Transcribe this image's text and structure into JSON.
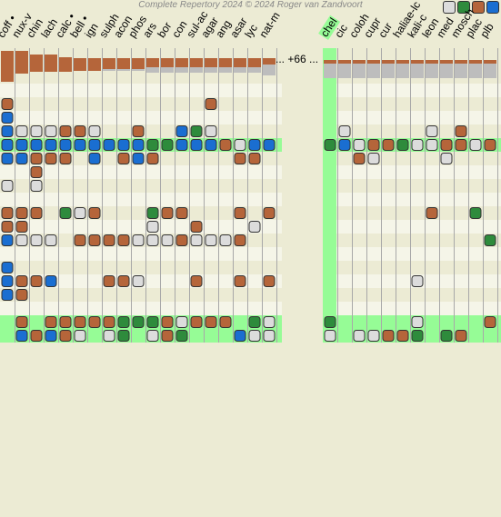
{
  "app": {
    "copyright": "Complete Repertory 2024 © 2024 Roger van Zandvoort",
    "more_remedies_label": "... +66 ..."
  },
  "legend": [
    {
      "name": "grade-1-legend",
      "color": "#dcdcdc"
    },
    {
      "name": "grade-2-legend",
      "color": "#2e8b3c"
    },
    {
      "name": "grade-3-legend",
      "color": "#b5653a"
    },
    {
      "name": "grade-4-legend",
      "color": "#1a6ed1"
    }
  ],
  "colors": {
    "grade_1": "#dcdcdc",
    "grade_2": "#2e8b3c",
    "grade_3": "#b5653a",
    "grade_4": "#1a6ed1",
    "bar_top": "#b5653a",
    "bar_bottom": "#bdbdbd",
    "highlight": "#96fc96",
    "row_light": "#f5f5e8",
    "row_dark": "#ecebd4"
  },
  "remedies_left": [
    {
      "label": "coff •",
      "bar_fraction": 0.92,
      "bar_top_fraction": 0.92
    },
    {
      "label": "nux-v",
      "bar_fraction": 0.92,
      "bar_top_fraction": 0.68
    },
    {
      "label": "chin",
      "bar_fraction": 0.8,
      "bar_top_fraction": 0.5
    },
    {
      "label": "lach",
      "bar_fraction": 0.8,
      "bar_top_fraction": 0.5
    },
    {
      "label": "calc •",
      "bar_fraction": 0.74,
      "bar_top_fraction": 0.44
    },
    {
      "label": "bell •",
      "bar_fraction": 0.7,
      "bar_top_fraction": 0.38
    },
    {
      "label": "ign",
      "bar_fraction": 0.7,
      "bar_top_fraction": 0.38
    },
    {
      "label": "sulph",
      "bar_fraction": 0.7,
      "bar_top_fraction": 0.32
    },
    {
      "label": "acon",
      "bar_fraction": 0.7,
      "bar_top_fraction": 0.32
    },
    {
      "label": "phos",
      "bar_fraction": 0.7,
      "bar_top_fraction": 0.32
    },
    {
      "label": "ars",
      "bar_fraction": 0.7,
      "bar_top_fraction": 0.26
    },
    {
      "label": "bor",
      "bar_fraction": 0.7,
      "bar_top_fraction": 0.26
    },
    {
      "label": "con",
      "bar_fraction": 0.7,
      "bar_top_fraction": 0.26
    },
    {
      "label": "sul-ac",
      "bar_fraction": 0.7,
      "bar_top_fraction": 0.26
    },
    {
      "label": "agar",
      "bar_fraction": 0.7,
      "bar_top_fraction": 0.26
    },
    {
      "label": "ang",
      "bar_fraction": 0.7,
      "bar_top_fraction": 0.26
    },
    {
      "label": "asar",
      "bar_fraction": 0.7,
      "bar_top_fraction": 0.26
    },
    {
      "label": "lyc",
      "bar_fraction": 0.7,
      "bar_top_fraction": 0.26
    },
    {
      "label": "nat-m",
      "bar_fraction": 0.7,
      "bar_top_fraction": 0.2
    }
  ],
  "remedies_right": [
    {
      "label": "chel",
      "bar_fraction": 0.66,
      "bar_top_fraction": 0.1,
      "selected": true
    },
    {
      "label": "cic",
      "bar_fraction": 0.66,
      "bar_top_fraction": 0.1
    },
    {
      "label": "coloh",
      "bar_fraction": 0.66,
      "bar_top_fraction": 0.1
    },
    {
      "label": "cupr",
      "bar_fraction": 0.66,
      "bar_top_fraction": 0.1
    },
    {
      "label": "cur",
      "bar_fraction": 0.66,
      "bar_top_fraction": 0.1
    },
    {
      "label": "haliae-lc",
      "bar_fraction": 0.66,
      "bar_top_fraction": 0.1
    },
    {
      "label": "kali-c",
      "bar_fraction": 0.66,
      "bar_top_fraction": 0.1
    },
    {
      "label": "leon",
      "bar_fraction": 0.66,
      "bar_top_fraction": 0.1
    },
    {
      "label": "med",
      "bar_fraction": 0.66,
      "bar_top_fraction": 0.1
    },
    {
      "label": "mosch",
      "bar_fraction": 0.66,
      "bar_top_fraction": 0.1
    },
    {
      "label": "plac",
      "bar_fraction": 0.66,
      "bar_top_fraction": 0.1
    },
    {
      "label": "plb",
      "bar_fraction": 0.66,
      "bar_top_fraction": 0.1
    }
  ],
  "rows": [
    {
      "highlight": false,
      "left": "",
      "right": ""
    },
    {
      "highlight": false,
      "left": "3000000000000030000",
      "right": ""
    },
    {
      "highlight": false,
      "left": "4",
      "right": ""
    },
    {
      "highlight": false,
      "left": "4111331003004210000",
      "right": "010000010300"
    },
    {
      "highlight": true,
      "left": "4444444444224443144",
      "right": "241332113313"
    },
    {
      "highlight": false,
      "left": "4433304034300000330",
      "right": "003100001000"
    },
    {
      "highlight": false,
      "left": "0030000000000000000",
      "right": ""
    },
    {
      "highlight": false,
      "left": "1010000000000000000",
      "right": ""
    },
    {
      "highlight": false,
      "left": "",
      "right": ""
    },
    {
      "highlight": false,
      "left": "3330213000233000303",
      "right": "000000030020"
    },
    {
      "highlight": false,
      "left": "3300000000100300010",
      "right": ""
    },
    {
      "highlight": false,
      "left": "4111033331113111300",
      "right": "000000000002"
    },
    {
      "highlight": false,
      "left": "",
      "right": ""
    },
    {
      "highlight": false,
      "left": "4000000000000000000",
      "right": ""
    },
    {
      "highlight": false,
      "left": "4334000331000300303",
      "right": "000000100000"
    },
    {
      "highlight": false,
      "left": "4300000000000000000",
      "right": ""
    },
    {
      "highlight": false,
      "left": "",
      "right": ""
    },
    {
      "highlight": true,
      "left": "0303333322231333021",
      "right": "200000100003"
    },
    {
      "highlight": true,
      "left": "0434310120132000411",
      "right": "101133202300"
    }
  ]
}
